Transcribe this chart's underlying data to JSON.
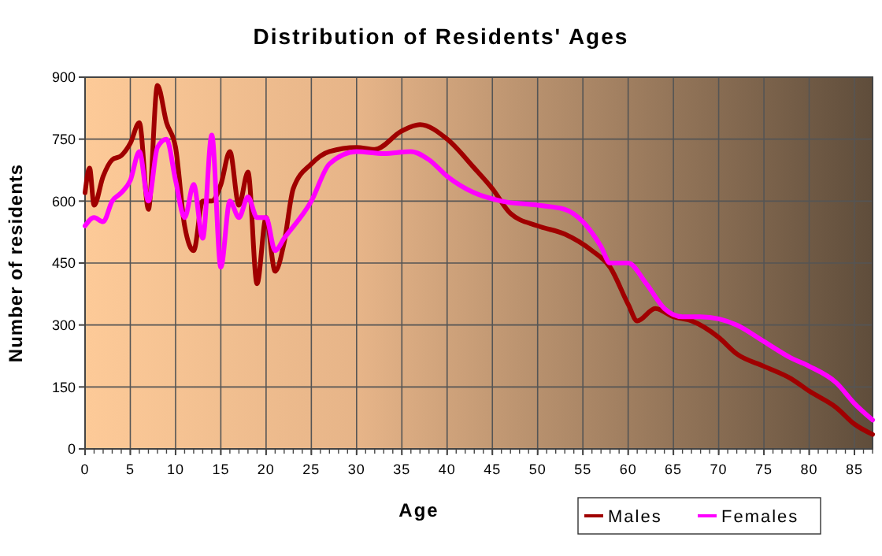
{
  "chart_data": {
    "type": "line",
    "title": "Distribution of Residents' Ages",
    "xlabel": "Age",
    "ylabel": "Number of residents",
    "xlim": [
      0,
      87
    ],
    "xticks": [
      0,
      5,
      10,
      15,
      20,
      25,
      30,
      35,
      40,
      45,
      50,
      55,
      60,
      65,
      70,
      75,
      80,
      85
    ],
    "ylim": [
      0,
      900
    ],
    "yticks": [
      0,
      150,
      300,
      450,
      600,
      750,
      900
    ],
    "grid": true,
    "legend": "bottom right",
    "series": [
      {
        "name": "Males",
        "color": "#a00000",
        "x": [
          0,
          0.5,
          1,
          2,
          3,
          4,
          5,
          6,
          7,
          8,
          9,
          10,
          11,
          12,
          13,
          14,
          15,
          16,
          17,
          18,
          19,
          20,
          21,
          22,
          23,
          25,
          27,
          30,
          32,
          35,
          37,
          40,
          43,
          45,
          47,
          50,
          53,
          56,
          58,
          60,
          61,
          63,
          65,
          67,
          70,
          72,
          75,
          78,
          80,
          83,
          85,
          87
        ],
        "values": [
          620,
          680,
          590,
          660,
          700,
          710,
          740,
          790,
          580,
          880,
          790,
          730,
          540,
          480,
          600,
          600,
          640,
          720,
          590,
          670,
          400,
          560,
          430,
          500,
          630,
          690,
          720,
          730,
          725,
          770,
          785,
          750,
          680,
          630,
          570,
          540,
          520,
          480,
          440,
          350,
          310,
          340,
          320,
          310,
          270,
          230,
          200,
          170,
          140,
          100,
          60,
          35
        ]
      },
      {
        "name": "Females",
        "color": "#ff00ff",
        "x": [
          0,
          1,
          2,
          3,
          4,
          5,
          6,
          7,
          8,
          9,
          10,
          11,
          12,
          13,
          14,
          15,
          16,
          17,
          18,
          19,
          20,
          21,
          22,
          25,
          27,
          30,
          33,
          36,
          38,
          40,
          43,
          46,
          50,
          53,
          55,
          57,
          58,
          60,
          62,
          64,
          66,
          68,
          70,
          72,
          75,
          78,
          80,
          83,
          85,
          87
        ],
        "values": [
          540,
          560,
          550,
          600,
          620,
          650,
          720,
          600,
          730,
          750,
          650,
          560,
          640,
          510,
          760,
          440,
          600,
          560,
          610,
          560,
          560,
          480,
          510,
          600,
          690,
          720,
          715,
          720,
          700,
          660,
          620,
          600,
          590,
          580,
          550,
          490,
          450,
          450,
          400,
          340,
          320,
          320,
          315,
          300,
          260,
          220,
          200,
          160,
          110,
          70
        ]
      }
    ]
  }
}
